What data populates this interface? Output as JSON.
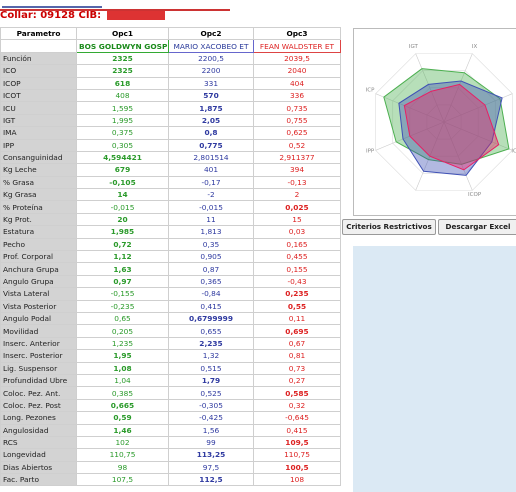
{
  "header": {
    "collar_label": "Collar: 09128 CIB:"
  },
  "table": {
    "columns": [
      "Parametro",
      "Opc1",
      "Opc2",
      "Opc3"
    ],
    "bulls": [
      "BOS GOLDWYN GOSPELL ET",
      "MARIO XACOBEO ET",
      "FEAN WALDSTER ET"
    ],
    "rows": [
      {
        "label": "Función",
        "v": [
          "2325",
          "2200,5",
          "2039,5"
        ]
      },
      {
        "label": "ICO",
        "v": [
          "2325",
          "2200",
          "2040"
        ]
      },
      {
        "label": "ICOP",
        "v": [
          "618",
          "331",
          "404"
        ]
      },
      {
        "label": "ICOT",
        "v": [
          "408",
          "570",
          "336"
        ]
      },
      {
        "label": "ICU",
        "v": [
          "1,595",
          "1,875",
          "0,735"
        ]
      },
      {
        "label": "IGT",
        "v": [
          "1,995",
          "2,05",
          "0,755"
        ]
      },
      {
        "label": "IMA",
        "v": [
          "0,375",
          "0,8",
          "0,625"
        ]
      },
      {
        "label": "IPP",
        "v": [
          "0,305",
          "0,775",
          "0,52"
        ]
      },
      {
        "label": "Consanguinidad",
        "v": [
          "4,594421",
          "2,801514",
          "2,911377"
        ]
      },
      {
        "label": "Kg Leche",
        "v": [
          "679",
          "401",
          "394"
        ]
      },
      {
        "label": "% Grasa",
        "v": [
          "-0,105",
          "-0,17",
          "-0,13"
        ]
      },
      {
        "label": "Kg Grasa",
        "v": [
          "14",
          "-2",
          "2"
        ]
      },
      {
        "label": "% Proteína",
        "v": [
          "-0,015",
          "-0,015",
          "0,025"
        ]
      },
      {
        "label": "Kg Prot.",
        "v": [
          "20",
          "11",
          "15"
        ]
      },
      {
        "label": "Estatura",
        "v": [
          "1,985",
          "1,813",
          "0,03"
        ]
      },
      {
        "label": "Pecho",
        "v": [
          "0,72",
          "0,35",
          "0,165"
        ]
      },
      {
        "label": "Prof. Corporal",
        "v": [
          "1,12",
          "0,905",
          "0,455"
        ]
      },
      {
        "label": "Anchura Grupa",
        "v": [
          "1,63",
          "0,87",
          "0,155"
        ]
      },
      {
        "label": "Angulo Grupa",
        "v": [
          "0,97",
          "0,365",
          "-0,43"
        ]
      },
      {
        "label": "Vista Lateral",
        "v": [
          "-0,155",
          "-0,84",
          "0,235"
        ]
      },
      {
        "label": "Vista Posterior",
        "v": [
          "-0,235",
          "0,415",
          "0,55"
        ]
      },
      {
        "label": "Angulo Podal",
        "v": [
          "0,65",
          "0,6799999",
          "0,11"
        ]
      },
      {
        "label": "Movilidad",
        "v": [
          "0,205",
          "0,655",
          "0,695"
        ]
      },
      {
        "label": "Inserc. Anterior",
        "v": [
          "1,235",
          "2,235",
          "0,67"
        ]
      },
      {
        "label": "Inserc. Posterior",
        "v": [
          "1,95",
          "1,32",
          "0,81"
        ]
      },
      {
        "label": "Lig. Suspensor",
        "v": [
          "1,08",
          "0,515",
          "0,73"
        ]
      },
      {
        "label": "Profundidad Ubre",
        "v": [
          "1,04",
          "1,79",
          "0,27"
        ]
      },
      {
        "label": "Coloc. Pez. Ant.",
        "v": [
          "0,385",
          "0,525",
          "0,585"
        ]
      },
      {
        "label": "Coloc. Pez. Post",
        "v": [
          "0,665",
          "-0,305",
          "0,32"
        ]
      },
      {
        "label": "Long. Pezones",
        "v": [
          "0,59",
          "-0,425",
          "-0,645"
        ]
      },
      {
        "label": "Angulosidad",
        "v": [
          "1,46",
          "1,56",
          "0,415"
        ]
      },
      {
        "label": "RCS",
        "v": [
          "102",
          "99",
          "109,5"
        ]
      },
      {
        "label": "Longevidad",
        "v": [
          "110,75",
          "113,25",
          "110,75"
        ]
      },
      {
        "label": "Dias Abiertos",
        "v": [
          "98",
          "97,5",
          "100,5"
        ]
      },
      {
        "label": "Fac. Parto",
        "v": [
          "107,5",
          "112,5",
          "108"
        ]
      }
    ],
    "bold": [
      [
        0,
        0
      ],
      [
        1,
        0
      ],
      [
        2,
        0
      ],
      [
        3,
        1
      ],
      [
        4,
        1
      ],
      [
        5,
        1
      ],
      [
        6,
        1
      ],
      [
        7,
        1
      ],
      [
        8,
        0
      ],
      [
        9,
        0
      ],
      [
        10,
        0
      ],
      [
        11,
        0
      ],
      [
        12,
        2
      ],
      [
        13,
        0
      ],
      [
        14,
        0
      ],
      [
        15,
        0
      ],
      [
        16,
        0
      ],
      [
        17,
        0
      ],
      [
        18,
        0
      ],
      [
        19,
        2
      ],
      [
        20,
        2
      ],
      [
        21,
        1
      ],
      [
        22,
        2
      ],
      [
        23,
        1
      ],
      [
        24,
        0
      ],
      [
        25,
        0
      ],
      [
        26,
        1
      ],
      [
        27,
        2
      ],
      [
        28,
        0
      ],
      [
        29,
        0
      ],
      [
        30,
        0
      ],
      [
        31,
        2
      ],
      [
        32,
        1
      ],
      [
        33,
        2
      ],
      [
        34,
        1
      ]
    ]
  },
  "radar": {
    "axis_labels": [
      "IGT",
      "IX",
      "ICP",
      "IPP",
      "ICOP",
      "ICOT"
    ],
    "series_colors": [
      "#4caf50",
      "#3f51b5",
      "#e91e63"
    ]
  },
  "buttons": {
    "criteria": "Criterios Restrictivos",
    "download": "Descargar Excel"
  }
}
